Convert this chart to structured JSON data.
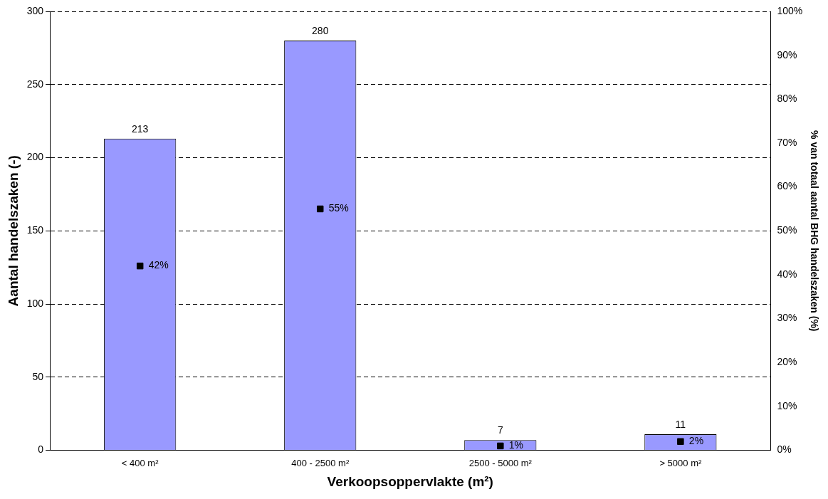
{
  "chart_data": {
    "type": "bar",
    "xlabel": "Verkoopsoppervlakte (m²)",
    "ylabel": "Aantal handelszaken (-)",
    "y2label": "% van totaal aantal BHG handelszaken (%)",
    "categories": [
      "< 400 m²",
      "400 - 2500 m²",
      "2500 - 5000 m²",
      "> 5000 m²"
    ],
    "series": [
      {
        "color": "#9999ff",
        "values": [
          213,
          280,
          7,
          11
        ],
        "value_labels": [
          "213",
          "280",
          "7",
          "11"
        ]
      },
      {
        "type": "scatter",
        "axis": "y2",
        "color": "#000000",
        "marker": "square",
        "values": [
          42,
          55,
          1,
          2
        ],
        "value_labels": [
          "42%",
          "55%",
          "1%",
          "2%"
        ]
      }
    ],
    "ylim": [
      0,
      300
    ],
    "yticks": [
      0,
      50,
      100,
      150,
      200,
      250,
      300
    ],
    "y2lim": [
      0,
      100
    ],
    "y2ticks": [
      {
        "value": 0,
        "label": "0%"
      },
      {
        "value": 10,
        "label": "10%"
      },
      {
        "value": 20,
        "label": "20%"
      },
      {
        "value": 30,
        "label": "30%"
      },
      {
        "value": 40,
        "label": "40%"
      },
      {
        "value": 50,
        "label": "50%"
      },
      {
        "value": 60,
        "label": "60%"
      },
      {
        "value": 70,
        "label": "70%"
      },
      {
        "value": 80,
        "label": "80%"
      },
      {
        "value": 90,
        "label": "90%"
      },
      {
        "value": 100,
        "label": "100%"
      }
    ],
    "grid": "y",
    "line_style": "dashed",
    "legend": false
  }
}
